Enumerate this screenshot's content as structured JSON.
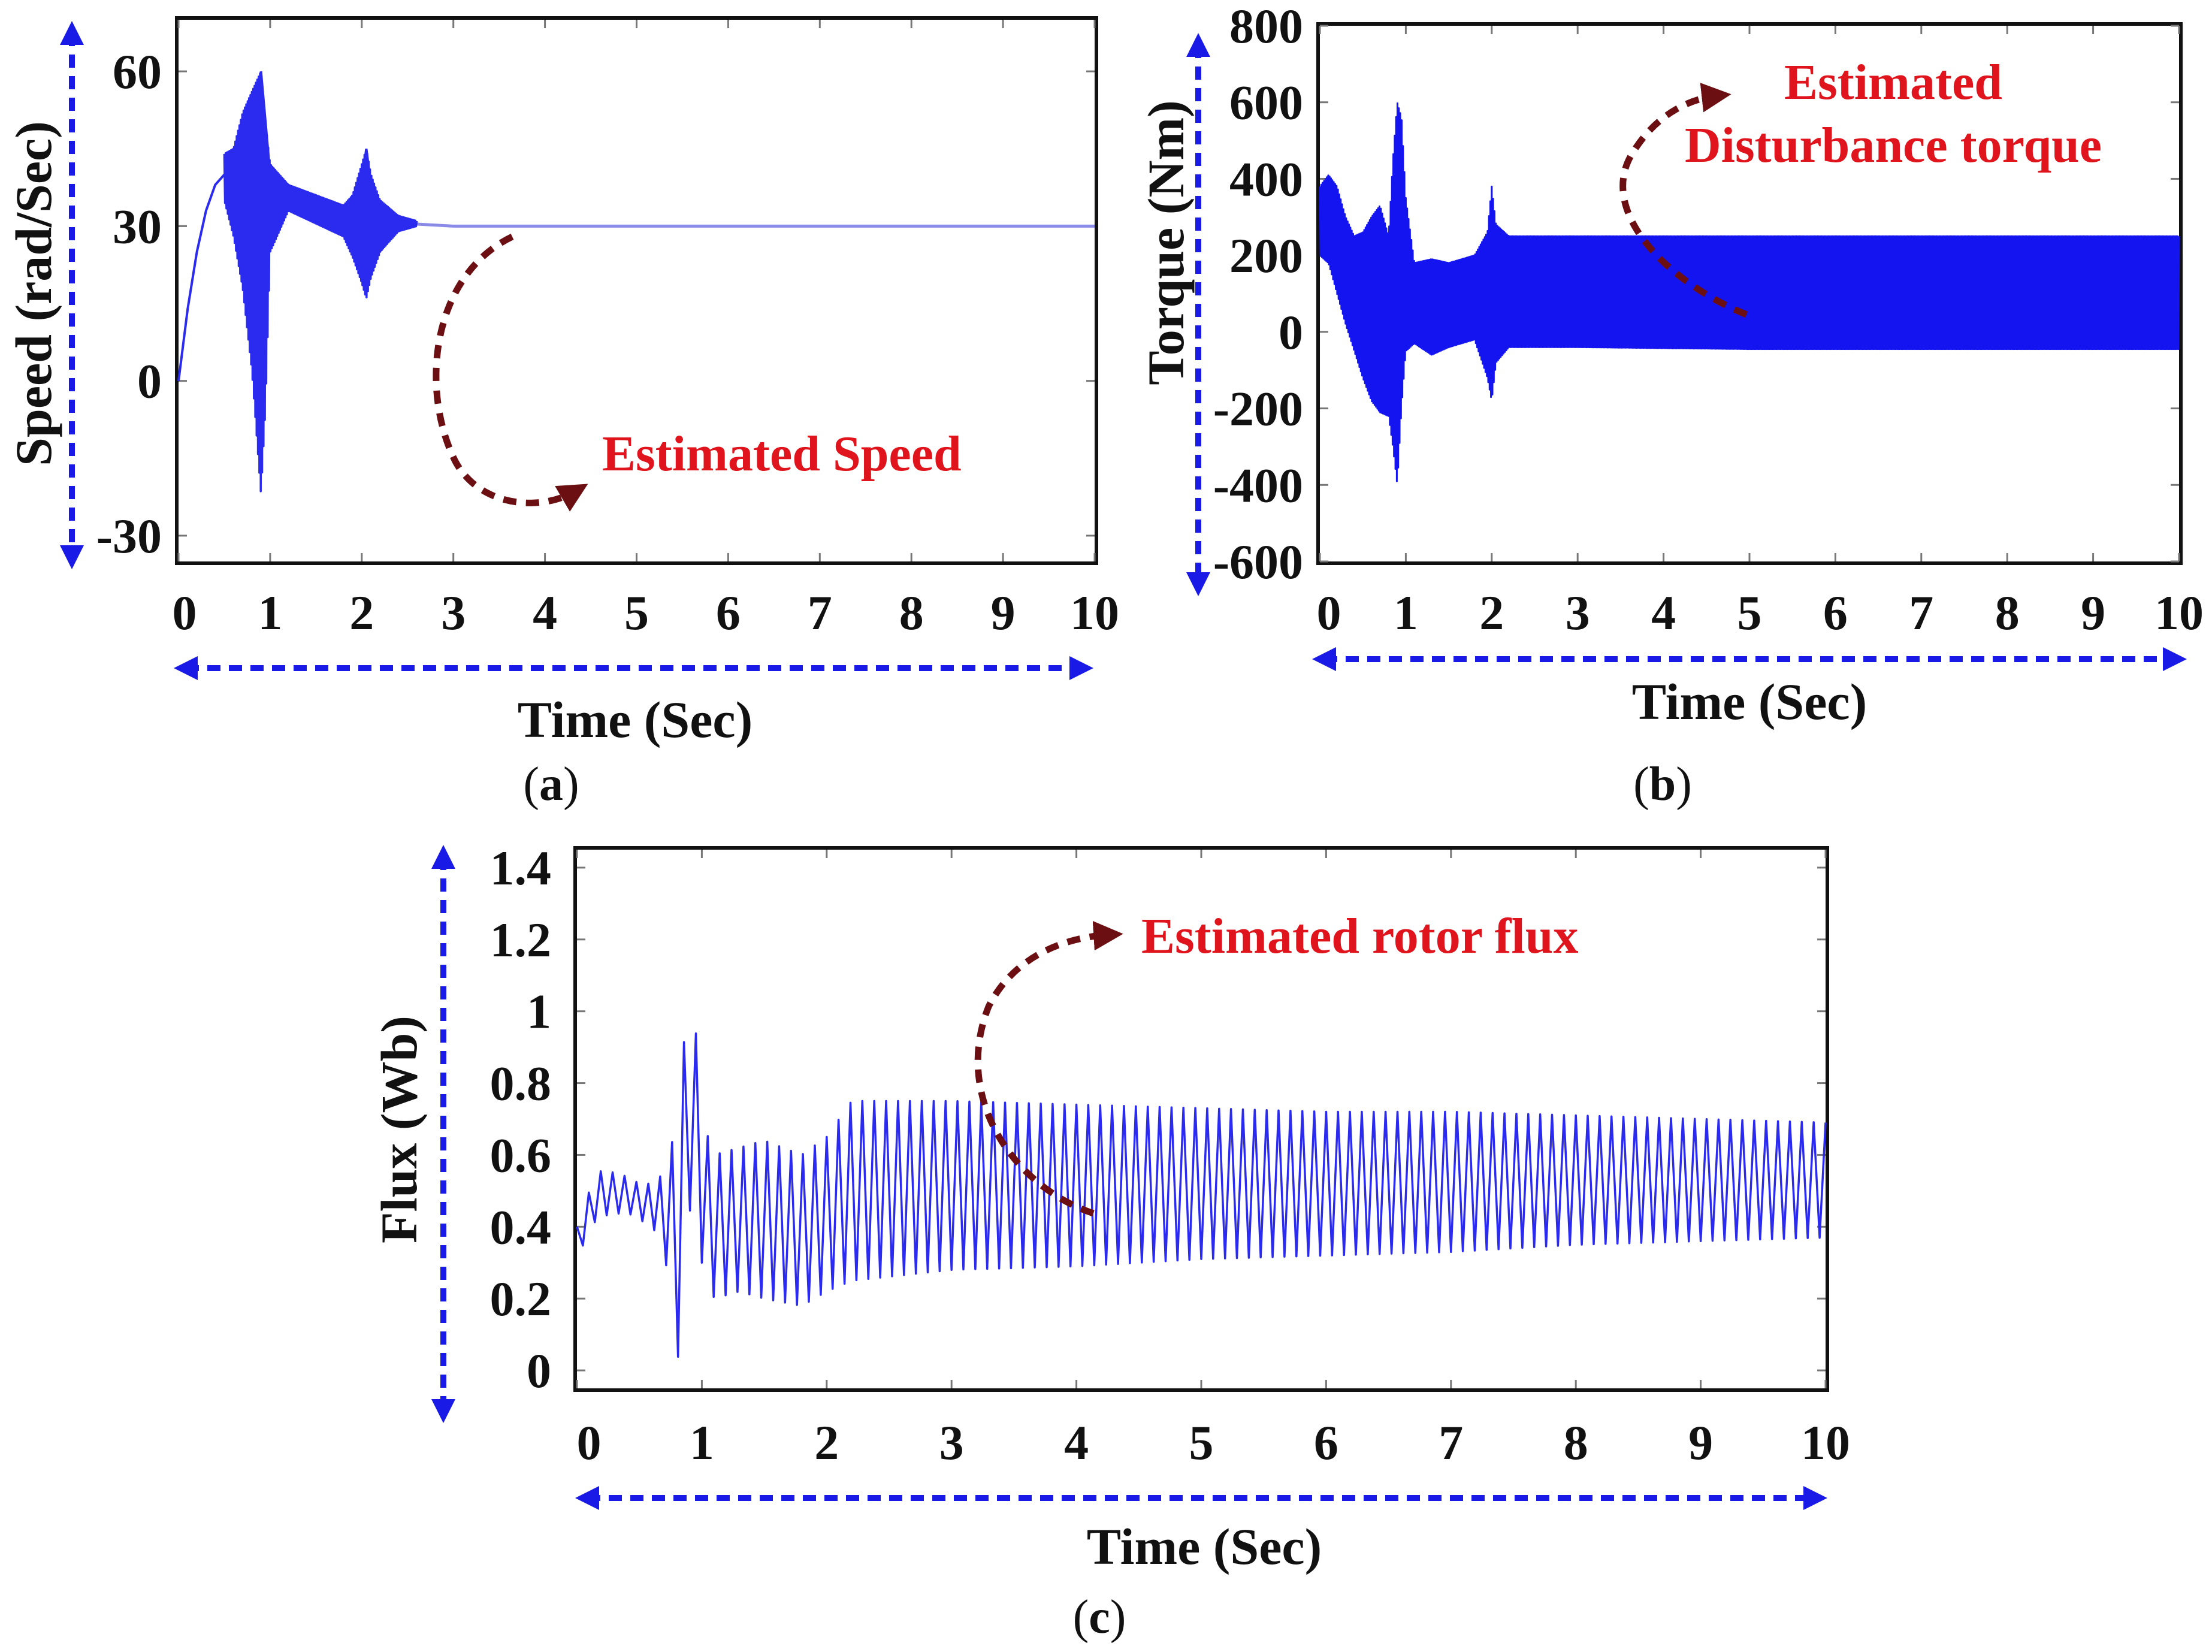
{
  "chart_data": [
    {
      "id": "a",
      "type": "line",
      "panel_label": "a",
      "title": "",
      "xlabel": "Time (Sec)",
      "ylabel": "Speed (rad/Sec)",
      "xlim": [
        0,
        10
      ],
      "ylim": [
        -35,
        70
      ],
      "x_ticks": [
        "0",
        "1",
        "2",
        "3",
        "4",
        "5",
        "6",
        "7",
        "8",
        "9",
        "10"
      ],
      "y_ticks": [
        {
          "value": 60,
          "label": "60"
        },
        {
          "value": 30,
          "label": "30"
        },
        {
          "value": 0,
          "label": "0"
        },
        {
          "value": -30,
          "label": "-30"
        }
      ],
      "annotation": [
        "Estimated Speed"
      ],
      "series": [
        {
          "name": "Estimated speed",
          "color": "#2b2bf0",
          "points": [
            [
              0,
              0
            ],
            [
              0.1,
              14
            ],
            [
              0.2,
              25
            ],
            [
              0.3,
              33
            ],
            [
              0.4,
              38
            ],
            [
              0.5,
              40
            ],
            [
              0.6,
              38
            ],
            [
              0.7,
              46
            ],
            [
              0.8,
              56
            ],
            [
              0.85,
              58
            ],
            [
              0.9,
              60
            ],
            [
              0.95,
              50
            ],
            [
              1.0,
              40
            ],
            [
              1.1,
              36
            ],
            [
              1.2,
              37
            ],
            [
              1.4,
              36
            ],
            [
              1.6,
              33
            ],
            [
              1.8,
              31
            ],
            [
              2.0,
              38
            ],
            [
              2.05,
              45
            ],
            [
              2.1,
              38
            ],
            [
              2.3,
              31
            ],
            [
              2.5,
              30.5
            ],
            [
              3.0,
              30
            ],
            [
              4.0,
              30
            ],
            [
              6.0,
              30
            ],
            [
              8.0,
              30
            ],
            [
              10.0,
              30
            ]
          ],
          "envelope": [
            [
              0.5,
              35,
              44
            ],
            [
              0.6,
              28,
              45
            ],
            [
              0.7,
              18,
              52
            ],
            [
              0.8,
              2,
              56
            ],
            [
              0.85,
              -10,
              58
            ],
            [
              0.9,
              -22,
              60
            ],
            [
              0.95,
              -5,
              50
            ],
            [
              1.0,
              25,
              42
            ],
            [
              1.2,
              33,
              38
            ],
            [
              1.8,
              28,
              34
            ],
            [
              1.9,
              24,
              36
            ],
            [
              2.0,
              19,
              42
            ],
            [
              2.05,
              16,
              45
            ],
            [
              2.1,
              20,
              40
            ],
            [
              2.2,
              25,
              35
            ],
            [
              2.4,
              29,
              32
            ],
            [
              2.6,
              30,
              31
            ]
          ]
        }
      ]
    },
    {
      "id": "b",
      "type": "line",
      "panel_label": "b",
      "title": "",
      "xlabel": "Time (Sec)",
      "ylabel": "Torque (Nm)",
      "xlim": [
        0,
        10
      ],
      "ylim": [
        -600,
        800
      ],
      "x_ticks": [
        "0",
        "1",
        "2",
        "3",
        "4",
        "5",
        "6",
        "7",
        "8",
        "9",
        "10"
      ],
      "y_ticks": [
        {
          "value": 800,
          "label": "800"
        },
        {
          "value": 600,
          "label": "600"
        },
        {
          "value": 400,
          "label": "400"
        },
        {
          "value": 200,
          "label": "200"
        },
        {
          "value": 0,
          "label": "0"
        },
        {
          "value": -200,
          "label": "-200"
        },
        {
          "value": -400,
          "label": "-400"
        },
        {
          "value": -600,
          "label": "-600"
        }
      ],
      "annotation": [
        "Estimated",
        "Disturbance torque"
      ],
      "series": [
        {
          "name": "Estimated disturbance torque",
          "color": "#1414f0",
          "envelope": [
            [
              0,
              200,
              380
            ],
            [
              0.1,
              180,
              410
            ],
            [
              0.2,
              100,
              380
            ],
            [
              0.3,
              20,
              300
            ],
            [
              0.4,
              -50,
              250
            ],
            [
              0.5,
              -120,
              260
            ],
            [
              0.6,
              -180,
              300
            ],
            [
              0.7,
              -210,
              330
            ],
            [
              0.8,
              -220,
              250
            ],
            [
              0.85,
              -300,
              450
            ],
            [
              0.9,
              -400,
              600
            ],
            [
              0.95,
              -200,
              560
            ],
            [
              1.0,
              -50,
              350
            ],
            [
              1.1,
              -30,
              180
            ],
            [
              1.3,
              -60,
              190
            ],
            [
              1.5,
              -40,
              180
            ],
            [
              1.8,
              -20,
              200
            ],
            [
              1.95,
              -120,
              260
            ],
            [
              2.0,
              -180,
              380
            ],
            [
              2.05,
              -80,
              280
            ],
            [
              2.2,
              -40,
              250
            ],
            [
              3.0,
              -40,
              250
            ],
            [
              5.0,
              -45,
              250
            ],
            [
              7.0,
              -45,
              250
            ],
            [
              9.0,
              -45,
              250
            ],
            [
              10.0,
              -45,
              250
            ]
          ]
        }
      ]
    },
    {
      "id": "c",
      "type": "line",
      "panel_label": "c",
      "title": "",
      "xlabel": "Time (Sec)",
      "ylabel": "Flux (Wb)",
      "xlim": [
        0,
        10
      ],
      "ylim": [
        -0.05,
        1.45
      ],
      "x_ticks": [
        "0",
        "1",
        "2",
        "3",
        "4",
        "5",
        "6",
        "7",
        "8",
        "9",
        "10"
      ],
      "y_ticks": [
        {
          "value": 1.4,
          "label": "1.4"
        },
        {
          "value": 1.2,
          "label": "1.2"
        },
        {
          "value": 1.0,
          "label": "1"
        },
        {
          "value": 0.8,
          "label": "0.8"
        },
        {
          "value": 0.6,
          "label": "0.6"
        },
        {
          "value": 0.4,
          "label": "0.4"
        },
        {
          "value": 0.2,
          "label": "0.2"
        },
        {
          "value": 0.0,
          "label": "0"
        }
      ],
      "annotation": [
        "Estimated rotor flux"
      ],
      "series": [
        {
          "name": "Estimated rotor flux",
          "color": "#2b2bf0",
          "envelope": [
            [
              0,
              0.3,
              0.4
            ],
            [
              0.1,
              0.4,
              0.5
            ],
            [
              0.2,
              0.43,
              0.56
            ],
            [
              0.4,
              0.44,
              0.54
            ],
            [
              0.5,
              0.42,
              0.52
            ],
            [
              0.6,
              0.4,
              0.52
            ],
            [
              0.7,
              0.35,
              0.55
            ],
            [
              0.75,
              0.15,
              0.6
            ],
            [
              0.8,
              0.0,
              0.75
            ],
            [
              0.85,
              0.2,
              0.9
            ],
            [
              0.9,
              0.45,
              1.0
            ],
            [
              0.95,
              0.4,
              0.95
            ],
            [
              1.0,
              0.3,
              0.7
            ],
            [
              1.1,
              0.2,
              0.6
            ],
            [
              1.3,
              0.22,
              0.62
            ],
            [
              1.5,
              0.2,
              0.64
            ],
            [
              1.8,
              0.18,
              0.6
            ],
            [
              2.0,
              0.22,
              0.65
            ],
            [
              2.2,
              0.25,
              0.75
            ],
            [
              3.0,
              0.28,
              0.75
            ],
            [
              4.0,
              0.29,
              0.74
            ],
            [
              5.0,
              0.31,
              0.73
            ],
            [
              6.0,
              0.32,
              0.72
            ],
            [
              7.0,
              0.33,
              0.72
            ],
            [
              8.0,
              0.35,
              0.71
            ],
            [
              9.0,
              0.36,
              0.7
            ],
            [
              10.0,
              0.37,
              0.69
            ]
          ]
        }
      ]
    }
  ]
}
